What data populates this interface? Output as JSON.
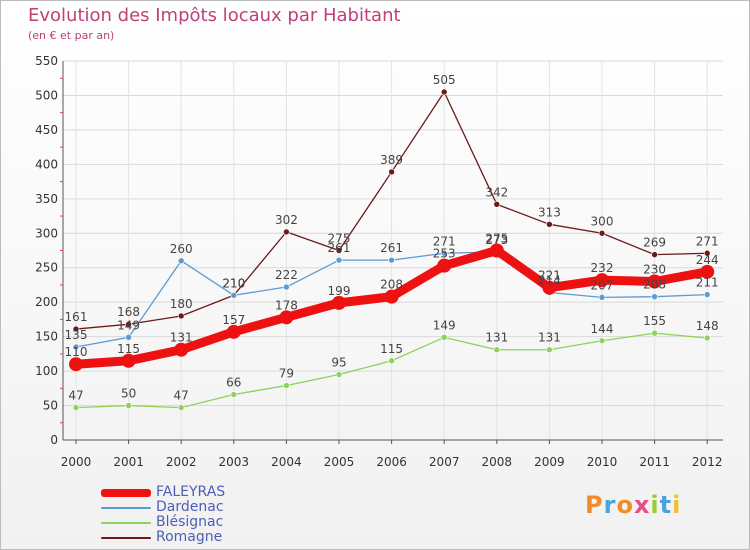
{
  "chart_data": {
    "type": "line",
    "title": "Evolution des Impôts locaux par Habitant",
    "subtitle": "(en € et par an)",
    "x": [
      "2000",
      "2001",
      "2002",
      "2003",
      "2004",
      "2005",
      "2006",
      "2007",
      "2008",
      "2009",
      "2010",
      "2011",
      "2012"
    ],
    "yticks": [
      "0",
      "50",
      "100",
      "150",
      "200",
      "250",
      "300",
      "350",
      "400",
      "450",
      "500",
      "550"
    ],
    "ylim": [
      0,
      550
    ],
    "grid": true,
    "legend_position": "bottom-left",
    "series": [
      {
        "name": "Romagne",
        "color": "#6b1a1a",
        "values": [
          161,
          168,
          180,
          210,
          302,
          275,
          389,
          505,
          342,
          313,
          300,
          269,
          271
        ]
      },
      {
        "name": "Blésignac",
        "color": "#8ed25b",
        "values": [
          47,
          50,
          47,
          66,
          79,
          95,
          115,
          149,
          131,
          131,
          144,
          155,
          148
        ]
      },
      {
        "name": "Dardenac",
        "color": "#5b9bd5",
        "values": [
          135,
          149,
          260,
          210,
          222,
          261,
          261,
          271,
          273,
          214,
          207,
          208,
          211
        ]
      },
      {
        "name": "FALEYRAS",
        "color": "#ee1111",
        "values": [
          110,
          115,
          131,
          157,
          178,
          199,
          208,
          253,
          275,
          221,
          232,
          230,
          244
        ]
      }
    ],
    "legend_order": [
      "FALEYRAS",
      "Dardenac",
      "Blésignac",
      "Romagne"
    ]
  },
  "logo": {
    "text": "Proxiti"
  }
}
